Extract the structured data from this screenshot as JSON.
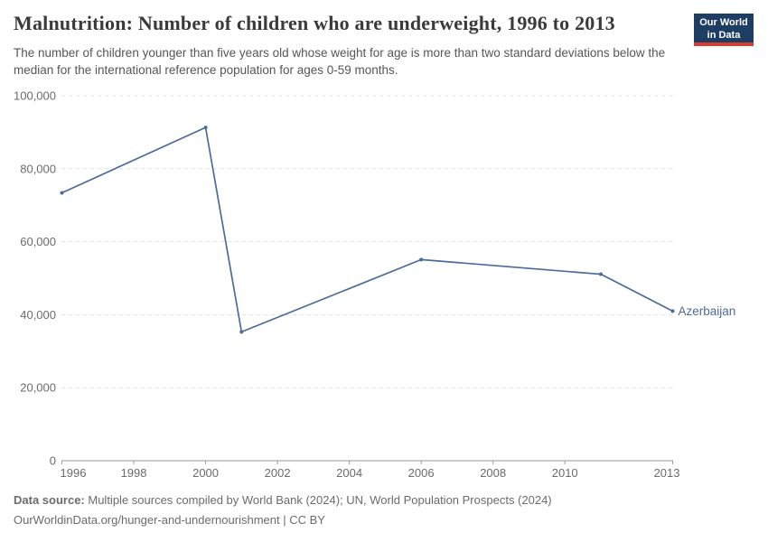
{
  "header": {
    "title": "Malnutrition: Number of children who are underweight, 1996 to 2013",
    "subtitle": "The number of children younger than five years old whose weight for age is more than two standard deviations below the median for the international reference population for ages 0-59 months.",
    "logo": {
      "line1": "Our World",
      "line2": "in Data",
      "bg_color": "#1d3d63",
      "stripe_color": "#d93b32"
    }
  },
  "chart_data": {
    "type": "line",
    "title": "Malnutrition: Number of children who are underweight, 1996 to 2013",
    "xlabel": "",
    "ylabel": "",
    "xlim": [
      1996,
      2013
    ],
    "ylim": [
      0,
      100000
    ],
    "x_ticks": [
      1996,
      1998,
      2000,
      2002,
      2004,
      2006,
      2008,
      2010,
      2013
    ],
    "y_ticks": [
      0,
      20000,
      40000,
      60000,
      80000,
      100000
    ],
    "grid": "horizontal-dashed",
    "legend_position": "end-of-line",
    "series": [
      {
        "name": "Azerbaijan",
        "color": "#4C6A9C",
        "points": [
          {
            "x": 1996,
            "y": 73400
          },
          {
            "x": 2000,
            "y": 91300
          },
          {
            "x": 2001,
            "y": 35300
          },
          {
            "x": 2006,
            "y": 55100
          },
          {
            "x": 2011,
            "y": 51100
          },
          {
            "x": 2013,
            "y": 41000
          }
        ]
      }
    ]
  },
  "footer": {
    "source_label": "Data source:",
    "source_text": "Multiple sources compiled by World Bank (2024); UN, World Population Prospects (2024)",
    "link_text": "OurWorldinData.org/hunger-and-undernourishment | CC BY"
  },
  "colors": {
    "axis_label": "#6b6b6b",
    "gridline": "#dedede",
    "axis_line": "#9a9a9a",
    "title": "#3a3a3a",
    "subtitle": "#565656",
    "series_blue": "#4C6A9C"
  }
}
